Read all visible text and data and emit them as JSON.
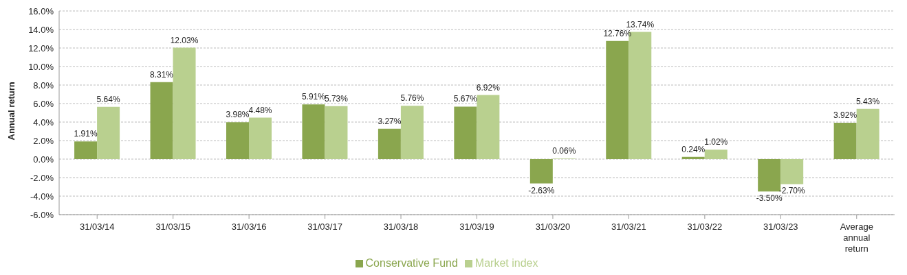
{
  "chart_data": {
    "type": "bar",
    "ylabel": "Annual return",
    "categories": [
      "31/03/14",
      "31/03/15",
      "31/03/16",
      "31/03/17",
      "31/03/18",
      "31/03/19",
      "31/03/20",
      "31/03/21",
      "31/03/22",
      "31/03/23",
      "Average annual return"
    ],
    "series": [
      {
        "name": "Conservative Fund",
        "color": "#8aa64e",
        "values": [
          1.91,
          8.31,
          3.98,
          5.91,
          3.27,
          5.67,
          -2.63,
          12.76,
          0.24,
          -3.5,
          3.92
        ],
        "value_labels": [
          "1.91%",
          "8.31%",
          "3.98%",
          "5.91%",
          "3.27%",
          "5.67%",
          "-2.63%",
          "12.76%",
          "0.24%",
          "-3.50%",
          "3.92%"
        ]
      },
      {
        "name": "Market index",
        "color": "#b9d08f",
        "values": [
          5.64,
          12.03,
          4.48,
          5.73,
          5.76,
          6.92,
          0.06,
          13.74,
          1.02,
          -2.7,
          5.43
        ],
        "value_labels": [
          "5.64%",
          "12.03%",
          "4.48%",
          "5.73%",
          "5.76%",
          "6.92%",
          "0.06%",
          "13.74%",
          "1.02%",
          "-2.70%",
          "5.43%"
        ]
      }
    ],
    "ylim": [
      -6,
      16
    ],
    "yticks": [
      {
        "value": -6,
        "label": "-6.0%"
      },
      {
        "value": -4,
        "label": "-4.0%"
      },
      {
        "value": -2,
        "label": "-2.0%"
      },
      {
        "value": 0,
        "label": "0.0%"
      },
      {
        "value": 2,
        "label": "2.0%"
      },
      {
        "value": 4,
        "label": "4.0%"
      },
      {
        "value": 6,
        "label": "6.0%"
      },
      {
        "value": 8,
        "label": "8.0%"
      },
      {
        "value": 10,
        "label": "10.0%"
      },
      {
        "value": 12,
        "label": "12.0%"
      },
      {
        "value": 14,
        "label": "14.0%"
      },
      {
        "value": 16,
        "label": "16.0%"
      }
    ],
    "grid": "y",
    "legend": "bottom"
  }
}
